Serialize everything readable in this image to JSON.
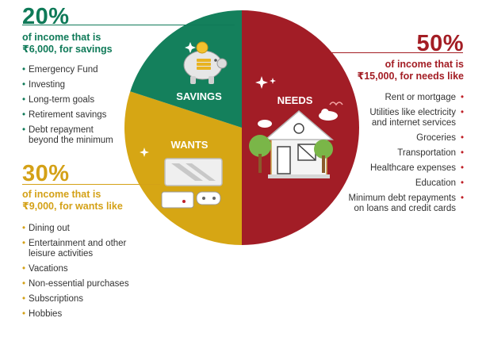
{
  "colors": {
    "savings": "#14805c",
    "wants": "#d6a614",
    "needs": "#a21d26",
    "savings_text": "#0f7a58",
    "wants_text": "#d4a117",
    "needs_text": "#a31d24"
  },
  "chart_data": {
    "type": "pie",
    "slices": [
      {
        "label": "NEEDS",
        "value": 50,
        "color": "#a21d26"
      },
      {
        "label": "WANTS",
        "value": 30,
        "color": "#d6a614"
      },
      {
        "label": "SAVINGS",
        "value": 20,
        "color": "#14805c"
      }
    ],
    "legend": "none",
    "start_angle_deg": 0,
    "direction": "clockwise"
  },
  "savings": {
    "percent": "20%",
    "line1": "of income that is",
    "line2": "₹6,000, for savings",
    "items": [
      "Emergency Fund",
      "Investing",
      "Long-term goals",
      "Retirement savings",
      "Debt repayment\nbeyond the minimum"
    ]
  },
  "wants": {
    "percent": "30%",
    "line1": "of income that is",
    "line2": "₹9,000, for wants like",
    "items": [
      "Dining out",
      "Entertainment and other\nleisure activities",
      "Vacations",
      "Non-essential purchases",
      "Subscriptions",
      "Hobbies"
    ]
  },
  "needs": {
    "percent": "50%",
    "line1": "of income that is",
    "line2": "₹15,000, for needs like",
    "items": [
      "Rent or mortgage",
      "Utilities like electricity\nand internet services",
      "Groceries",
      "Transportation",
      "Healthcare expenses",
      "Education",
      "Minimum debt repayments\non loans and credit cards"
    ]
  },
  "icons": [
    "piggy-bank-icon",
    "house-icon",
    "tv-and-console-icon",
    "sparkle-icon",
    "tree-icon",
    "cloud-icon",
    "bird-icon"
  ]
}
